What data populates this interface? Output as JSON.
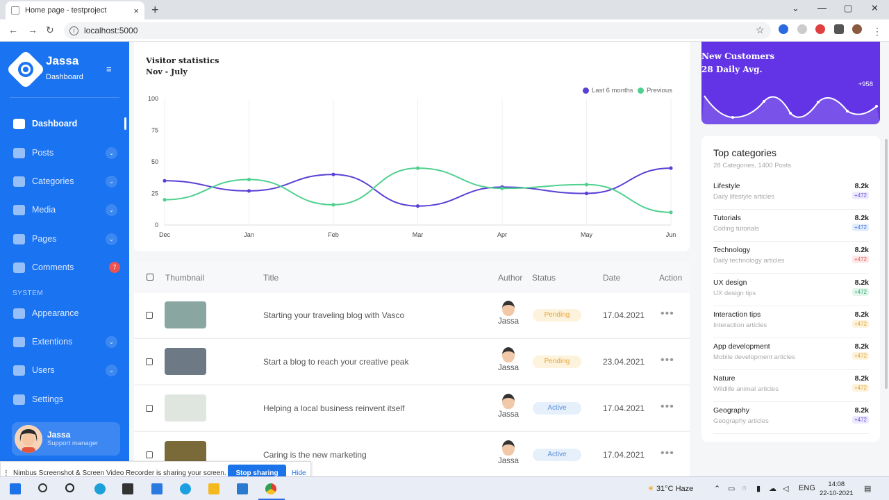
{
  "browser": {
    "tab_title": "Home page - testproject",
    "tab_close": "×",
    "new_tab": "+",
    "url": "localhost:5000",
    "controls": {
      "minimize": "—",
      "maximize": "▢",
      "close": "✕",
      "dropdown": "⌄"
    },
    "nav": {
      "back": "←",
      "forward": "→",
      "reload": "↻",
      "star": "☆"
    }
  },
  "sidebar": {
    "brand": "Jassa",
    "subtitle": "Dashboard",
    "collapse_icon": "≡",
    "section_label": "SYSTEM",
    "items": [
      {
        "label": "Dashboard",
        "icon": "home-icon"
      },
      {
        "label": "Posts",
        "icon": "posts-icon"
      },
      {
        "label": "Categories",
        "icon": "categories-icon"
      },
      {
        "label": "Media",
        "icon": "media-icon"
      },
      {
        "label": "Pages",
        "icon": "pages-icon"
      },
      {
        "label": "Comments",
        "icon": "comments-icon",
        "badge": "7"
      },
      {
        "label": "Appearance",
        "icon": "appearance-icon"
      },
      {
        "label": "Extentions",
        "icon": "extensions-icon"
      },
      {
        "label": "Users",
        "icon": "users-icon"
      },
      {
        "label": "Settings",
        "icon": "settings-icon"
      }
    ],
    "chevron": "⌄",
    "user": {
      "name": "Jassa",
      "role": "Support manager"
    }
  },
  "chart": {
    "title": "Visitor statistics",
    "subtitle": "Nov - July"
  },
  "chart_data": {
    "type": "line",
    "x": [
      "Dec",
      "Jan",
      "Feb",
      "Mar",
      "Apr",
      "May",
      "Jun"
    ],
    "series": [
      {
        "name": "Last 6 months",
        "color": "#5b3fd6",
        "values": [
          35,
          27,
          40,
          15,
          30,
          25,
          45
        ]
      },
      {
        "name": "Previous",
        "color": "#4fd08f",
        "values": [
          20,
          36,
          16,
          45,
          29,
          32,
          10
        ]
      }
    ],
    "yticks": [
      "100",
      "75",
      "50",
      "25",
      "0"
    ],
    "ylim": [
      0,
      100
    ],
    "grid": "vertical",
    "legend": "top-right"
  },
  "table": {
    "headers": {
      "thumbnail": "Thumbnail",
      "title": "Title",
      "author": "Author",
      "status": "Status",
      "date": "Date",
      "action": "Action"
    },
    "rows": [
      {
        "title": "Starting your traveling blog with Vasco",
        "author": "Jassa",
        "status": "Pending",
        "date": "17.04.2021",
        "action": "•••",
        "thumb_color": "#8aa6a0"
      },
      {
        "title": "Start a blog to reach your creative peak",
        "author": "Jassa",
        "status": "Pending",
        "date": "23.04.2021",
        "action": "•••",
        "thumb_color": "#6d7a86"
      },
      {
        "title": "Helping a local business reinvent itself",
        "author": "Jassa",
        "status": "Active",
        "date": "17.04.2021",
        "action": "•••",
        "thumb_color": "#dfe6e0"
      },
      {
        "title": "Caring is the new marketing",
        "author": "Jassa",
        "status": "Active",
        "date": "17.04.2021",
        "action": "•••",
        "thumb_color": "#7a6a3a"
      }
    ]
  },
  "new_customers": {
    "title": "New Customers",
    "subtitle": "28 Daily Avg.",
    "value": "+958"
  },
  "categories": {
    "title": "Top categories",
    "subtitle": "28 Categories, 1400 Posts",
    "items": [
      {
        "name": "Lifestyle",
        "desc": "Daily lifestyle articles",
        "value": "8.2k",
        "change": "+472",
        "color": "#6b4fe0",
        "bg": "#eceafd"
      },
      {
        "name": "Tutorials",
        "desc": "Coding tutorials",
        "value": "8.2k",
        "change": "+472",
        "color": "#3a6ee0",
        "bg": "#e4edfc"
      },
      {
        "name": "Technology",
        "desc": "Daily technology articles",
        "value": "8.2k",
        "change": "+472",
        "color": "#e05a5a",
        "bg": "#fde7e7"
      },
      {
        "name": "UX design",
        "desc": "UX design tips",
        "value": "8.2k",
        "change": "+472",
        "color": "#2ea86a",
        "bg": "#e2f6ec"
      },
      {
        "name": "Interaction tips",
        "desc": "Interaction articles",
        "value": "8.2k",
        "change": "+472",
        "color": "#e0a030",
        "bg": "#fdf2dc"
      },
      {
        "name": "App development",
        "desc": "Mobile development articles",
        "value": "8.2k",
        "change": "+472",
        "color": "#e0a030",
        "bg": "#fdf2dc"
      },
      {
        "name": "Nature",
        "desc": "Wildlife animal articles",
        "value": "8.2k",
        "change": "+472",
        "color": "#e0a030",
        "bg": "#fdf2dc"
      },
      {
        "name": "Geography",
        "desc": "Geography articles",
        "value": "8.2k",
        "change": "+472",
        "color": "#6b4fe0",
        "bg": "#eceafd"
      }
    ]
  },
  "share_bar": {
    "message": "Nimbus Screenshot & Screen Video Recorder is sharing your screen.",
    "stop": "Stop sharing",
    "hide": "Hide"
  },
  "taskbar": {
    "weather": "31°C  Haze",
    "lang": "ENG",
    "time": "14:08",
    "date": "22-10-2021"
  }
}
